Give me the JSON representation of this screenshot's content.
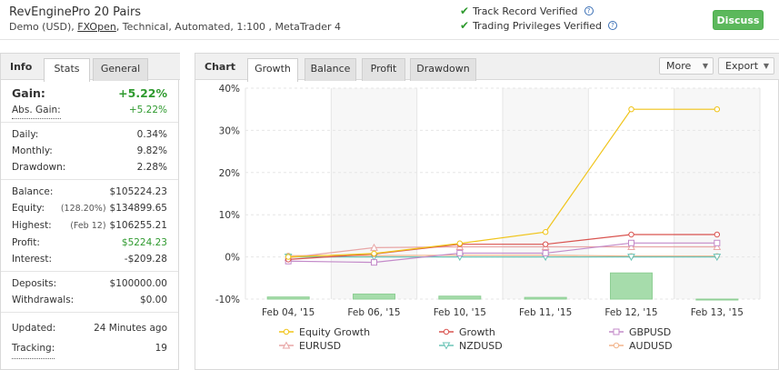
{
  "header": {
    "title": "RevEnginePro 20 Pairs",
    "sub_prefix": "Demo (USD),",
    "broker": "FXOpen",
    "sub_suffix": ", Technical, Automated, 1:100 , MetaTrader 4",
    "verify1": "Track Record Verified",
    "verify2": "Trading Privileges Verified",
    "discuss": "Discuss"
  },
  "left": {
    "label": "Info",
    "tabs": [
      "Stats",
      "General"
    ],
    "gain_label": "Gain:",
    "gain_value": "+5.22%",
    "abs_gain_label": "Abs. Gain:",
    "abs_gain_value": "+5.22%",
    "daily_label": "Daily:",
    "daily_value": "0.34%",
    "monthly_label": "Monthly:",
    "monthly_value": "9.82%",
    "drawdown_label": "Drawdown:",
    "drawdown_value": "2.28%",
    "balance_label": "Balance:",
    "balance_value": "$105224.23",
    "equity_label": "Equity:",
    "equity_note": "(128.20%)",
    "equity_value": "$134899.65",
    "highest_label": "Highest:",
    "highest_note": "(Feb 12)",
    "highest_value": "$106255.21",
    "profit_label": "Profit:",
    "profit_value": "$5224.23",
    "interest_label": "Interest:",
    "interest_value": "-$209.28",
    "deposits_label": "Deposits:",
    "deposits_value": "$100000.00",
    "withdrawals_label": "Withdrawals:",
    "withdrawals_value": "$0.00",
    "updated_label": "Updated:",
    "updated_value": "24 Minutes ago",
    "tracking_label": "Tracking:",
    "tracking_value": "19"
  },
  "chartpanel": {
    "label": "Chart",
    "tabs": [
      "Growth",
      "Balance",
      "Profit",
      "Drawdown"
    ],
    "more": "More",
    "export": "Export"
  },
  "chart_data": {
    "type": "line",
    "categories": [
      "Feb 04, '15",
      "Feb 06, '15",
      "Feb 10, '15",
      "Feb 11, '15",
      "Feb 12, '15",
      "Feb 13, '15"
    ],
    "ylim": [
      -10,
      40
    ],
    "yticks": [
      "-10%",
      "0%",
      "10%",
      "20%",
      "30%",
      "40%"
    ],
    "ytick_values": [
      -10,
      0,
      10,
      20,
      30,
      40
    ],
    "bars": {
      "values": [
        -9.5,
        -8.8,
        -9.3,
        -9.6,
        -3.8,
        -10
      ]
    },
    "series": [
      {
        "name": "Equity Growth",
        "color": "#f0c419",
        "marker": "circle",
        "values": [
          0,
          0.8,
          3.2,
          5.9,
          35,
          35
        ]
      },
      {
        "name": "Growth",
        "color": "#d9534f",
        "marker": "circle",
        "values": [
          -0.6,
          0.7,
          3.0,
          3.0,
          5.3,
          5.3
        ]
      },
      {
        "name": "GBPUSD",
        "color": "#c38ac9",
        "marker": "square",
        "values": [
          -1.0,
          -1.3,
          0.9,
          0.9,
          3.3,
          3.3
        ]
      },
      {
        "name": "EURUSD",
        "color": "#e8a6a6",
        "marker": "triangle",
        "values": [
          -0.2,
          2.2,
          2.4,
          2.4,
          2.4,
          2.4
        ]
      },
      {
        "name": "NZDUSD",
        "color": "#6bc4b7",
        "marker": "triangle-down",
        "values": [
          0,
          0,
          0,
          0,
          0,
          0
        ]
      },
      {
        "name": "AUDUSD",
        "color": "#f2b48a",
        "marker": "circle",
        "values": [
          0.3,
          0.3,
          0.4,
          0.4,
          0.2,
          0.2
        ]
      }
    ]
  }
}
